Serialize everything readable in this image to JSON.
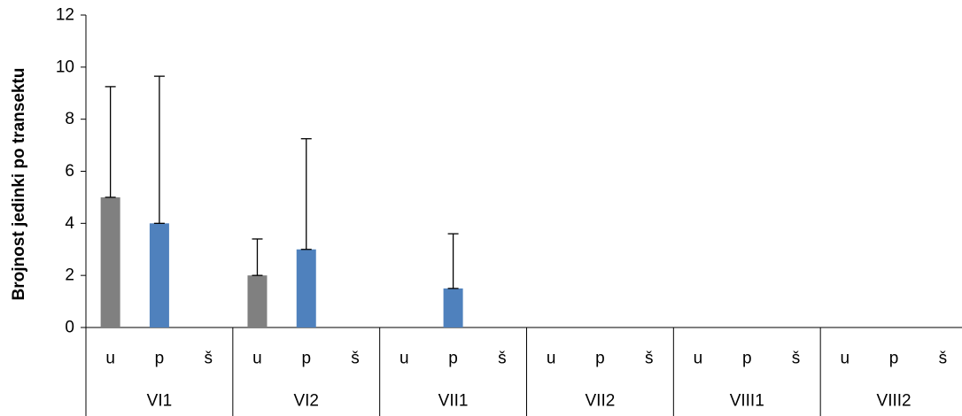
{
  "chart_data": {
    "type": "bar",
    "title": "",
    "xlabel": "",
    "ylabel": "Brojnost jedinki po transektu",
    "ylim": [
      0,
      12
    ],
    "yticks": [
      0,
      2,
      4,
      6,
      8,
      10,
      12
    ],
    "grid": false,
    "legend": "none",
    "groups": [
      "VI1",
      "VI2",
      "VII1",
      "VII2",
      "VIII1",
      "VIII2"
    ],
    "subcategories": [
      "u",
      "p",
      "š"
    ],
    "colors": {
      "u": "#808080",
      "p": "#4F81BD",
      "š": "#4F81BD"
    },
    "values": [
      [
        5,
        4,
        0
      ],
      [
        2,
        3,
        0
      ],
      [
        0,
        1.5,
        0
      ],
      [
        0,
        0,
        0
      ],
      [
        0,
        0,
        0
      ],
      [
        0,
        0,
        0
      ]
    ],
    "error_upper": [
      [
        9.25,
        9.65,
        null
      ],
      [
        3.4,
        7.25,
        null
      ],
      [
        null,
        3.6,
        null
      ],
      [
        null,
        null,
        null
      ],
      [
        null,
        null,
        null
      ],
      [
        null,
        null,
        null
      ]
    ]
  }
}
